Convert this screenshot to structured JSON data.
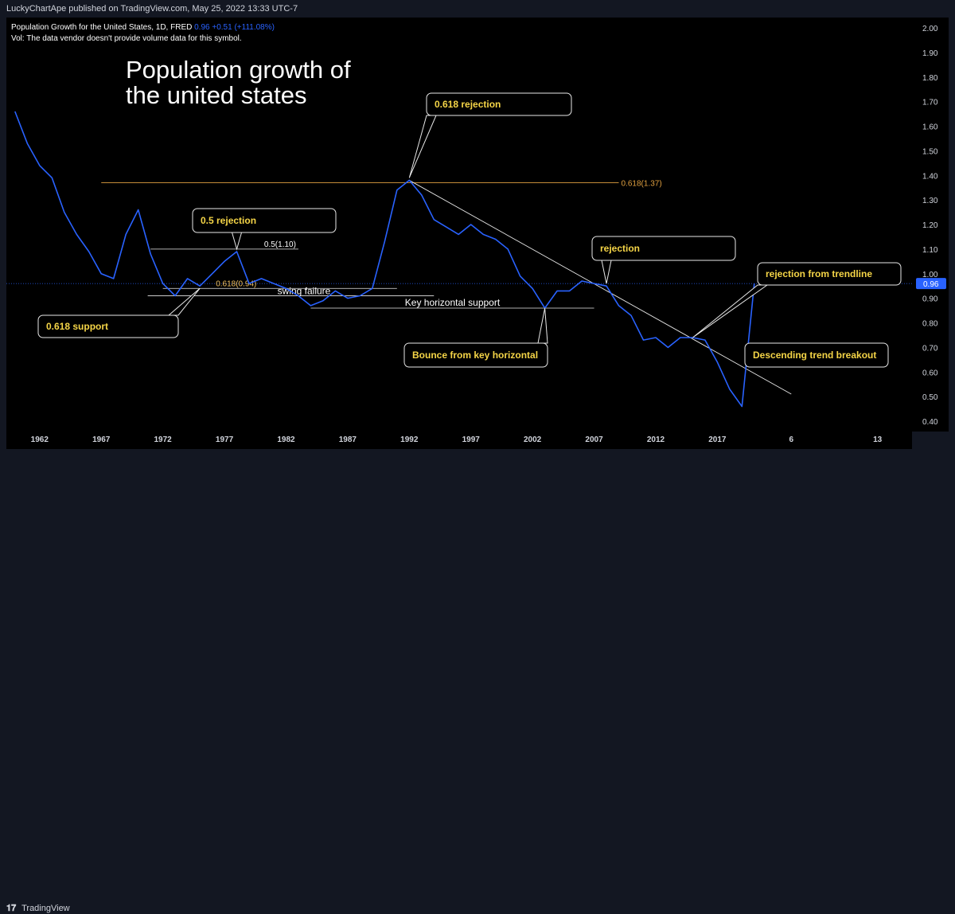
{
  "header": {
    "published": "LuckyChartApe published on TradingView.com, May 25, 2022 13:33 UTC-7"
  },
  "legend": {
    "symbol": "Population Growth for the United States, 1D, FRED",
    "value": "0.96",
    "change": "+0.51 (+111.08%)",
    "volume_note": "Vol: The data vendor doesn't provide volume data for this symbol."
  },
  "footer": {
    "logo_text": "TradingView"
  },
  "colors": {
    "series": "#2962ff",
    "background": "#000000",
    "fib": "#e0a040",
    "callout_text": "#f5d547"
  },
  "chart_data": {
    "type": "line",
    "title": "Population growth of the united states",
    "series": [
      {
        "values": [
          [
            1960,
            1.66
          ],
          [
            1961,
            1.53
          ],
          [
            1962,
            1.44
          ],
          [
            1963,
            1.39
          ],
          [
            1964,
            1.25
          ],
          [
            1965,
            1.16
          ],
          [
            1966,
            1.09
          ],
          [
            1967,
            1.0
          ],
          [
            1968,
            0.98
          ],
          [
            1969,
            1.16
          ],
          [
            1970,
            1.26
          ],
          [
            1971,
            1.08
          ],
          [
            1972,
            0.96
          ],
          [
            1973,
            0.91
          ],
          [
            1974,
            0.98
          ],
          [
            1975,
            0.95
          ],
          [
            1976,
            1.0
          ],
          [
            1977,
            1.05
          ],
          [
            1978,
            1.09
          ],
          [
            1979,
            0.96
          ],
          [
            1980,
            0.98
          ],
          [
            1981,
            0.96
          ],
          [
            1982,
            0.94
          ],
          [
            1983,
            0.91
          ],
          [
            1984,
            0.87
          ],
          [
            1985,
            0.89
          ],
          [
            1986,
            0.93
          ],
          [
            1987,
            0.9
          ],
          [
            1988,
            0.91
          ],
          [
            1989,
            0.94
          ],
          [
            1990,
            1.13
          ],
          [
            1991,
            1.34
          ],
          [
            1992,
            1.38
          ],
          [
            1993,
            1.32
          ],
          [
            1994,
            1.22
          ],
          [
            1995,
            1.19
          ],
          [
            1996,
            1.16
          ],
          [
            1997,
            1.2
          ],
          [
            1998,
            1.16
          ],
          [
            1999,
            1.14
          ],
          [
            2000,
            1.1
          ],
          [
            2001,
            0.99
          ],
          [
            2002,
            0.94
          ],
          [
            2003,
            0.86
          ],
          [
            2004,
            0.93
          ],
          [
            2005,
            0.93
          ],
          [
            2006,
            0.97
          ],
          [
            2007,
            0.96
          ],
          [
            2008,
            0.95
          ],
          [
            2009,
            0.87
          ],
          [
            2010,
            0.83
          ],
          [
            2011,
            0.73
          ],
          [
            2012,
            0.74
          ],
          [
            2013,
            0.7
          ],
          [
            2014,
            0.74
          ],
          [
            2015,
            0.74
          ],
          [
            2016,
            0.73
          ],
          [
            2017,
            0.64
          ],
          [
            2018,
            0.53
          ],
          [
            2019,
            0.46
          ],
          [
            2020,
            0.96
          ]
        ]
      }
    ],
    "x_ticks": [
      "1962",
      "1967",
      "1972",
      "1977",
      "1982",
      "1987",
      "1992",
      "1997",
      "2002",
      "2007",
      "2012",
      "2017",
      "6",
      "13"
    ],
    "x_tick_years": [
      1962,
      1967,
      1972,
      1977,
      1982,
      1987,
      1992,
      1997,
      2002,
      2007,
      2012,
      2017,
      2023,
      2030
    ],
    "y_ticks": [
      "2.00",
      "1.90",
      "1.80",
      "1.70",
      "1.60",
      "1.50",
      "1.40",
      "1.30",
      "1.20",
      "1.10",
      "1.00",
      "0.90",
      "0.80",
      "0.70",
      "0.60",
      "0.50",
      "0.40"
    ],
    "ylim": [
      0.4,
      2.0
    ],
    "xlim": [
      1959.3,
      2032.8
    ],
    "last_value_label": "0.96",
    "grid": false,
    "horizontal_levels": [
      {
        "label": "0.618(1.37)",
        "y": 1.37,
        "x1": 1967,
        "x2": 2009
      },
      {
        "label": "0.5(1.10)",
        "y": 1.1,
        "x1": 1971,
        "x2": 1983
      },
      {
        "label": "0.618(0.94)",
        "y": 0.94,
        "x1": 1972,
        "x2": 1991
      },
      {
        "label": "Key horizontal support",
        "y": 0.86,
        "x1": 1984,
        "x2": 2007
      }
    ],
    "swing_failure": {
      "label": "swing failure",
      "y": 0.91,
      "x1": 1974,
      "x2": 1994
    },
    "trendlines": [
      {
        "points": [
          [
            1992,
            1.38
          ],
          [
            2023,
            0.51
          ]
        ]
      },
      {
        "points": [
          [
            1960,
            0.96
          ],
          [
            2032.5,
            0.96
          ]
        ]
      }
    ],
    "annotations": [
      {
        "text": "0.618 rejection",
        "target": [
          1992,
          1.39
        ]
      },
      {
        "text": "0.5 rejection",
        "target": [
          1978,
          1.1
        ]
      },
      {
        "text": "0.618 support",
        "target": [
          1975,
          0.94
        ]
      },
      {
        "text": "rejection",
        "target": [
          2008,
          0.96
        ]
      },
      {
        "text": "rejection from trendline",
        "target": [
          2015,
          0.74
        ]
      },
      {
        "text": "Bounce from key horizontal",
        "target": [
          2003,
          0.86
        ]
      },
      {
        "text": "Descending trend breakout",
        "target": [
          2020,
          0.63
        ]
      }
    ]
  }
}
